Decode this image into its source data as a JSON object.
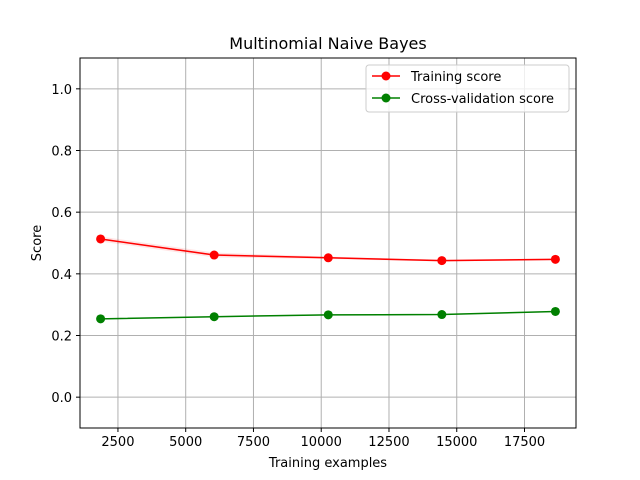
{
  "chart_data": {
    "type": "line",
    "title": "Multinomial Naive Bayes",
    "xlabel": "Training examples",
    "ylabel": "Score",
    "xlim": [
      1100,
      19400
    ],
    "ylim": [
      -0.1,
      1.1
    ],
    "xticks": [
      2500,
      5000,
      7500,
      10000,
      12500,
      15000,
      17500
    ],
    "xtick_labels": [
      "2500",
      "5000",
      "7500",
      "10000",
      "12500",
      "15000",
      "17500"
    ],
    "yticks": [
      0.0,
      0.2,
      0.4,
      0.6,
      0.8,
      1.0
    ],
    "ytick_labels": [
      "0.0",
      "0.2",
      "0.4",
      "0.6",
      "0.8",
      "1.0"
    ],
    "grid": true,
    "legend_position": "top-right",
    "x": [
      1860,
      6050,
      10260,
      14450,
      18640
    ],
    "series": [
      {
        "name": "Training score",
        "color": "#ff0000",
        "values": [
          0.513,
          0.461,
          0.452,
          0.443,
          0.447
        ],
        "band": [
          0.008,
          0.008,
          0.004,
          0.003,
          0.003
        ]
      },
      {
        "name": "Cross-validation score",
        "color": "#008000",
        "values": [
          0.254,
          0.261,
          0.267,
          0.268,
          0.278
        ],
        "band": [
          0.002,
          0.002,
          0.002,
          0.002,
          0.002
        ]
      }
    ]
  }
}
